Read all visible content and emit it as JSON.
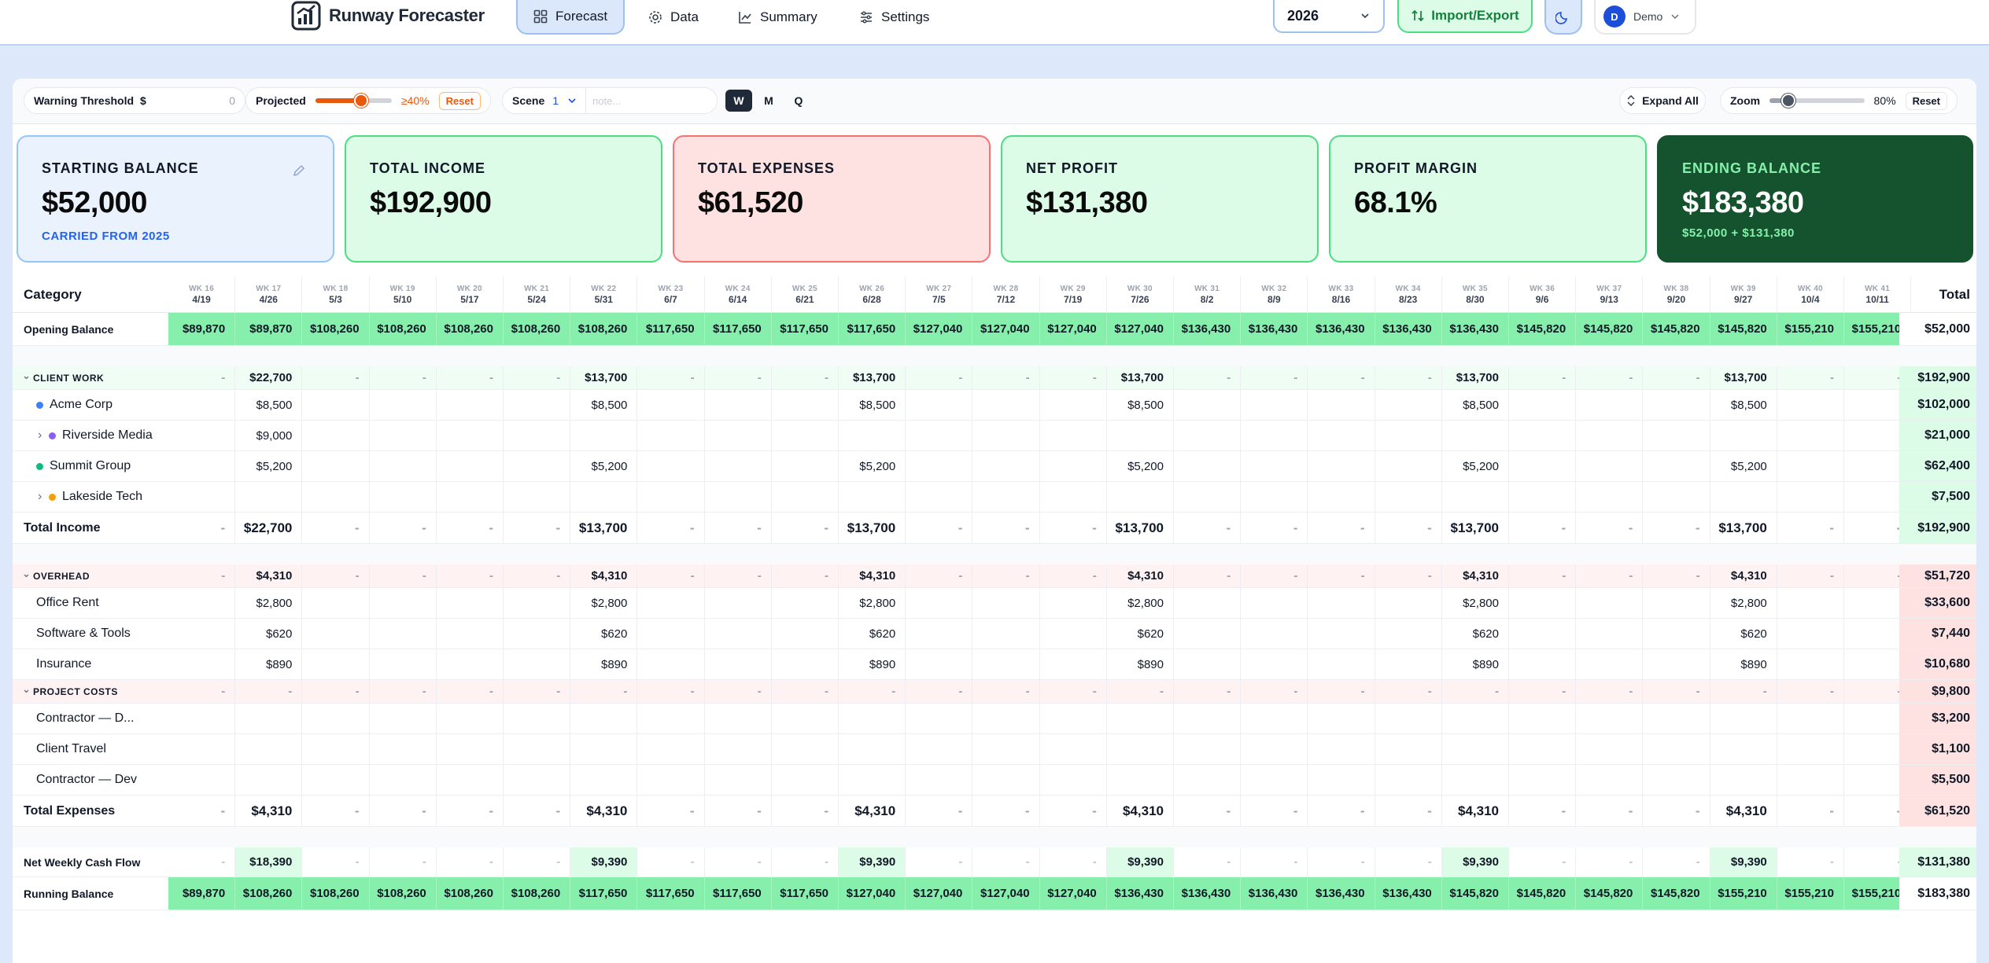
{
  "app": {
    "title": "Runway Forecaster"
  },
  "nav": {
    "tabs": [
      {
        "label": "Forecast",
        "active": true
      },
      {
        "label": "Data",
        "active": false
      },
      {
        "label": "Summary",
        "active": false
      },
      {
        "label": "Settings",
        "active": false
      }
    ]
  },
  "header": {
    "year": "2026",
    "import_export": "Import/Export",
    "user": "Demo",
    "user_initial": "D"
  },
  "toolbar": {
    "warning_label": "Warning Threshold",
    "warning_currency": "$",
    "warning_value": "0",
    "projected_label": "Projected",
    "projected_value": "≥40%",
    "projected_level": 0.6,
    "projected_reset": "Reset",
    "scene_label": "Scene",
    "scene_value": "1",
    "note_placeholder": "note...",
    "view_modes": [
      "W",
      "M",
      "Q"
    ],
    "active_view": "W",
    "expand_all": "Expand All",
    "zoom_label": "Zoom",
    "zoom_value": "80%",
    "zoom_level": 0.2,
    "zoom_reset": "Reset"
  },
  "cards": [
    {
      "label": "STARTING BALANCE",
      "value": "$52,000",
      "sub": "CARRIED FROM 2025"
    },
    {
      "label": "TOTAL INCOME",
      "value": "$192,900",
      "sub": ""
    },
    {
      "label": "TOTAL EXPENSES",
      "value": "$61,520",
      "sub": ""
    },
    {
      "label": "NET PROFIT",
      "value": "$131,380",
      "sub": ""
    },
    {
      "label": "PROFIT MARGIN",
      "value": "68.1%",
      "sub": ""
    },
    {
      "label": "ENDING BALANCE",
      "value": "$183,380",
      "sub": "$52,000 + $131,380"
    }
  ],
  "table": {
    "category_header": "Category",
    "total_header": "Total",
    "weeks": [
      {
        "wk": "WK 16",
        "date": "4/19"
      },
      {
        "wk": "WK 17",
        "date": "4/26"
      },
      {
        "wk": "WK 18",
        "date": "5/3"
      },
      {
        "wk": "WK 19",
        "date": "5/10"
      },
      {
        "wk": "WK 20",
        "date": "5/17"
      },
      {
        "wk": "WK 21",
        "date": "5/24"
      },
      {
        "wk": "WK 22",
        "date": "5/31"
      },
      {
        "wk": "WK 23",
        "date": "6/7"
      },
      {
        "wk": "WK 24",
        "date": "6/14"
      },
      {
        "wk": "WK 25",
        "date": "6/21"
      },
      {
        "wk": "WK 26",
        "date": "6/28"
      },
      {
        "wk": "WK 27",
        "date": "7/5"
      },
      {
        "wk": "WK 28",
        "date": "7/12"
      },
      {
        "wk": "WK 29",
        "date": "7/19"
      },
      {
        "wk": "WK 30",
        "date": "7/26"
      },
      {
        "wk": "WK 31",
        "date": "8/2"
      },
      {
        "wk": "WK 32",
        "date": "8/9"
      },
      {
        "wk": "WK 33",
        "date": "8/16"
      },
      {
        "wk": "WK 34",
        "date": "8/23"
      },
      {
        "wk": "WK 35",
        "date": "8/30"
      },
      {
        "wk": "WK 36",
        "date": "9/6"
      },
      {
        "wk": "WK 37",
        "date": "9/13"
      },
      {
        "wk": "WK 38",
        "date": "9/20"
      },
      {
        "wk": "WK 39",
        "date": "9/27"
      },
      {
        "wk": "WK 40",
        "date": "10/4"
      },
      {
        "wk": "WK 41",
        "date": "10/11"
      }
    ],
    "rows": [
      {
        "type": "balance",
        "label": "Opening Balance",
        "values": [
          "$89,870",
          "$89,870",
          "$108,260",
          "$108,260",
          "$108,260",
          "$108,260",
          "$108,260",
          "$117,650",
          "$117,650",
          "$117,650",
          "$117,650",
          "$127,040",
          "$127,040",
          "$127,040",
          "$127,040",
          "$136,430",
          "$136,430",
          "$136,430",
          "$136,430",
          "$136,430",
          "$145,820",
          "$145,820",
          "$145,820",
          "$145,820",
          "$155,210",
          "$155,210"
        ],
        "total": "$52,000"
      },
      {
        "type": "spacer"
      },
      {
        "type": "group-income",
        "label": "CLIENT WORK",
        "values": [
          "-",
          "$22,700",
          "-",
          "-",
          "-",
          "-",
          "$13,700",
          "-",
          "-",
          "-",
          "$13,700",
          "-",
          "-",
          "-",
          "$13,700",
          "-",
          "-",
          "-",
          "-",
          "$13,700",
          "-",
          "-",
          "-",
          "$13,700",
          "-",
          "-"
        ],
        "total": "$192,900"
      },
      {
        "type": "item",
        "label": "Acme Corp",
        "dot": "#3b82f6",
        "expand": false,
        "values": [
          "",
          "$8,500",
          "",
          "",
          "",
          "",
          "$8,500",
          "",
          "",
          "",
          "$8,500",
          "",
          "",
          "",
          "$8,500",
          "",
          "",
          "",
          "",
          "$8,500",
          "",
          "",
          "",
          "$8,500",
          "",
          ""
        ],
        "total": "$102,000"
      },
      {
        "type": "item",
        "label": "Riverside Media",
        "dot": "#8b5cf6",
        "expand": true,
        "values": [
          "",
          "$9,000",
          "",
          "",
          "",
          "",
          "",
          "",
          "",
          "",
          "",
          "",
          "",
          "",
          "",
          "",
          "",
          "",
          "",
          "",
          "",
          "",
          "",
          "",
          "",
          ""
        ],
        "total": "$21,000"
      },
      {
        "type": "item",
        "label": "Summit Group",
        "dot": "#10b981",
        "expand": false,
        "values": [
          "",
          "$5,200",
          "",
          "",
          "",
          "",
          "$5,200",
          "",
          "",
          "",
          "$5,200",
          "",
          "",
          "",
          "$5,200",
          "",
          "",
          "",
          "",
          "$5,200",
          "",
          "",
          "",
          "$5,200",
          "",
          ""
        ],
        "total": "$62,400"
      },
      {
        "type": "item",
        "label": "Lakeside Tech",
        "dot": "#f59e0b",
        "expand": true,
        "values": [
          "",
          "",
          "",
          "",
          "",
          "",
          "",
          "",
          "",
          "",
          "",
          "",
          "",
          "",
          "",
          "",
          "",
          "",
          "",
          "",
          "",
          "",
          "",
          "",
          "",
          ""
        ],
        "total": "$7,500"
      },
      {
        "type": "total-income",
        "label": "Total Income",
        "values": [
          "-",
          "$22,700",
          "-",
          "-",
          "-",
          "-",
          "$13,700",
          "-",
          "-",
          "-",
          "$13,700",
          "-",
          "-",
          "-",
          "$13,700",
          "-",
          "-",
          "-",
          "-",
          "$13,700",
          "-",
          "-",
          "-",
          "$13,700",
          "-",
          "-"
        ],
        "total": "$192,900"
      },
      {
        "type": "spacer"
      },
      {
        "type": "group-expense",
        "label": "OVERHEAD",
        "values": [
          "-",
          "$4,310",
          "-",
          "-",
          "-",
          "-",
          "$4,310",
          "-",
          "-",
          "-",
          "$4,310",
          "-",
          "-",
          "-",
          "$4,310",
          "-",
          "-",
          "-",
          "-",
          "$4,310",
          "-",
          "-",
          "-",
          "$4,310",
          "-",
          "-"
        ],
        "total": "$51,720"
      },
      {
        "type": "item",
        "label": "Office Rent",
        "values": [
          "",
          "$2,800",
          "",
          "",
          "",
          "",
          "$2,800",
          "",
          "",
          "",
          "$2,800",
          "",
          "",
          "",
          "$2,800",
          "",
          "",
          "",
          "",
          "$2,800",
          "",
          "",
          "",
          "$2,800",
          "",
          ""
        ],
        "total": "$33,600"
      },
      {
        "type": "item",
        "label": "Software & Tools",
        "values": [
          "",
          "$620",
          "",
          "",
          "",
          "",
          "$620",
          "",
          "",
          "",
          "$620",
          "",
          "",
          "",
          "$620",
          "",
          "",
          "",
          "",
          "$620",
          "",
          "",
          "",
          "$620",
          "",
          ""
        ],
        "total": "$7,440"
      },
      {
        "type": "item",
        "label": "Insurance",
        "values": [
          "",
          "$890",
          "",
          "",
          "",
          "",
          "$890",
          "",
          "",
          "",
          "$890",
          "",
          "",
          "",
          "$890",
          "",
          "",
          "",
          "",
          "$890",
          "",
          "",
          "",
          "$890",
          "",
          ""
        ],
        "total": "$10,680"
      },
      {
        "type": "group-expense",
        "label": "PROJECT COSTS",
        "values": [
          "-",
          "-",
          "-",
          "-",
          "-",
          "-",
          "-",
          "-",
          "-",
          "-",
          "-",
          "-",
          "-",
          "-",
          "-",
          "-",
          "-",
          "-",
          "-",
          "-",
          "-",
          "-",
          "-",
          "-",
          "-",
          "-"
        ],
        "total": "$9,800"
      },
      {
        "type": "item",
        "label": "Contractor — D...",
        "values": [
          "",
          "",
          "",
          "",
          "",
          "",
          "",
          "",
          "",
          "",
          "",
          "",
          "",
          "",
          "",
          "",
          "",
          "",
          "",
          "",
          "",
          "",
          "",
          "",
          "",
          ""
        ],
        "total": "$3,200"
      },
      {
        "type": "item",
        "label": "Client Travel",
        "values": [
          "",
          "",
          "",
          "",
          "",
          "",
          "",
          "",
          "",
          "",
          "",
          "",
          "",
          "",
          "",
          "",
          "",
          "",
          "",
          "",
          "",
          "",
          "",
          "",
          "",
          ""
        ],
        "total": "$1,100"
      },
      {
        "type": "item",
        "label": "Contractor — Dev",
        "values": [
          "",
          "",
          "",
          "",
          "",
          "",
          "",
          "",
          "",
          "",
          "",
          "",
          "",
          "",
          "",
          "",
          "",
          "",
          "",
          "",
          "",
          "",
          "",
          "",
          "",
          ""
        ],
        "total": "$5,500"
      },
      {
        "type": "total-expense",
        "label": "Total Expenses",
        "values": [
          "-",
          "$4,310",
          "-",
          "-",
          "-",
          "-",
          "$4,310",
          "-",
          "-",
          "-",
          "$4,310",
          "-",
          "-",
          "-",
          "$4,310",
          "-",
          "-",
          "-",
          "-",
          "$4,310",
          "-",
          "-",
          "-",
          "$4,310",
          "-",
          "-"
        ],
        "total": "$61,520"
      },
      {
        "type": "spacer"
      },
      {
        "type": "net",
        "label": "Net Weekly Cash Flow",
        "values": [
          "-",
          "$18,390",
          "-",
          "-",
          "-",
          "-",
          "$9,390",
          "-",
          "-",
          "-",
          "$9,390",
          "-",
          "-",
          "-",
          "$9,390",
          "-",
          "-",
          "-",
          "-",
          "$9,390",
          "-",
          "-",
          "-",
          "$9,390",
          "-",
          "-"
        ],
        "total": "$131,380"
      },
      {
        "type": "balance",
        "label": "Running Balance",
        "values": [
          "$89,870",
          "$108,260",
          "$108,260",
          "$108,260",
          "$108,260",
          "$108,260",
          "$117,650",
          "$117,650",
          "$117,650",
          "$117,650",
          "$127,040",
          "$127,040",
          "$127,040",
          "$127,040",
          "$136,430",
          "$136,430",
          "$136,430",
          "$136,430",
          "$136,430",
          "$145,820",
          "$145,820",
          "$145,820",
          "$145,820",
          "$155,210",
          "$155,210",
          "$155,210"
        ],
        "total": "$183,380"
      }
    ]
  },
  "colors": {
    "accent": "#1d4ed8",
    "income_bg": "#dcfce7",
    "income_border": "#4ade80",
    "expense_bg": "#fee2e2",
    "expense_border": "#f87171",
    "balance_cell": "#86efac",
    "ending_bg": "#14532d",
    "orange": "#ea580c"
  }
}
